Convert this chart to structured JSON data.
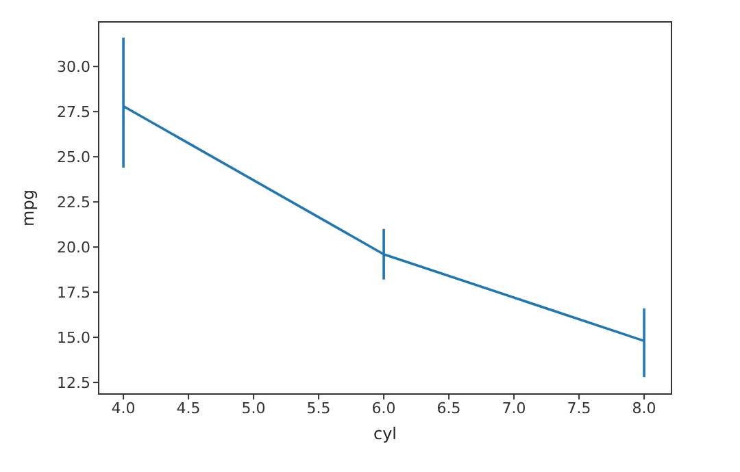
{
  "chart_data": {
    "type": "line",
    "xlabel": "cyl",
    "ylabel": "mpg",
    "x": [
      4,
      6,
      8
    ],
    "series": [
      {
        "color": "#1f77b4",
        "values": [
          27.8,
          19.6,
          14.8
        ],
        "errors": [
          [
            24.4,
            31.6
          ],
          [
            18.2,
            21.0
          ],
          [
            12.8,
            16.6
          ]
        ]
      }
    ],
    "xlim": [
      3.81,
      8.21
    ],
    "xticks": [
      {
        "value": 4,
        "label": "4.0"
      },
      {
        "value": 4.5,
        "label": "4.5"
      },
      {
        "value": 5,
        "label": "5.0"
      },
      {
        "value": 5.5,
        "label": "5.5"
      },
      {
        "value": 6,
        "label": "6.0"
      },
      {
        "value": 6.5,
        "label": "6.5"
      },
      {
        "value": 7,
        "label": "7.0"
      },
      {
        "value": 7.5,
        "label": "7.5"
      },
      {
        "value": 8,
        "label": "8.0"
      }
    ],
    "ylim": [
      11.86,
      32.47
    ],
    "yticks": [
      {
        "value": 12.5,
        "label": "12.5"
      },
      {
        "value": 15,
        "label": "15.0"
      },
      {
        "value": 17.5,
        "label": "17.5"
      },
      {
        "value": 20,
        "label": "20.0"
      },
      {
        "value": 22.5,
        "label": "22.5"
      },
      {
        "value": 25,
        "label": "25.0"
      },
      {
        "value": 27.5,
        "label": "27.5"
      },
      {
        "value": 30,
        "label": "30.0"
      }
    ],
    "grid": false,
    "legend": false,
    "marker": "none",
    "line_style": "solid"
  }
}
